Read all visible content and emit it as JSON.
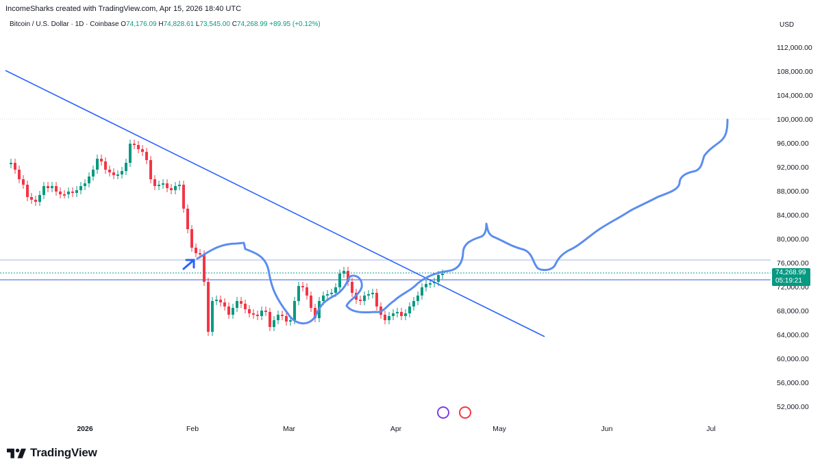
{
  "credit": "IncomeSharks created with TradingView.com, Apr 15, 2026 18:40 UTC",
  "legend": {
    "symbol": "Bitcoin / U.S. Dollar · 1D · Coinbase",
    "o_label": "O",
    "o": "74,176.09",
    "h_label": "H",
    "h": "74,828.61",
    "l_label": "L",
    "l": "73,545.00",
    "c_label": "C",
    "c": "74,268.99",
    "change": "+89.95 (+0.12%)"
  },
  "currency": "USD",
  "price_axis": [
    "112,000.00",
    "108,000.00",
    "104,000.00",
    "100,000.00",
    "96,000.00",
    "92,000.00",
    "88,000.00",
    "84,000.00",
    "80,000.00",
    "76,000.00",
    "72,000.00",
    "68,000.00",
    "64,000.00",
    "60,000.00",
    "56,000.00",
    "52,000.00"
  ],
  "date_axis": [
    "2026",
    "Feb",
    "Mar",
    "Apr",
    "May",
    "Jun",
    "Jul"
  ],
  "last_price": "74,268.99",
  "countdown": "05:19:21",
  "brand": "TradingView",
  "colors": {
    "up": "#089981",
    "down": "#f23645",
    "trendline": "#2962ff",
    "drawing": "#5b8def",
    "zone": "#5b7ee5"
  },
  "events": [
    "crypto-event-icon",
    "us-flag-icon"
  ]
}
